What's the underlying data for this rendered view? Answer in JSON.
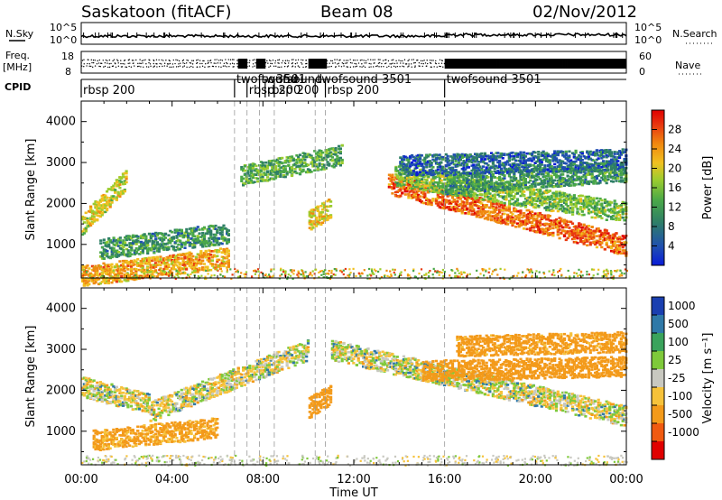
{
  "header": {
    "station": "Saskatoon (fitACF)",
    "beam": "Beam 08",
    "date": "02/Nov/2012"
  },
  "summary_panels": {
    "nsky_label": "N.Sky",
    "nsearch_label": "N.Search",
    "noise_ticks": [
      "10^5",
      "10^0"
    ],
    "freq_label_1": "Freq.",
    "freq_label_2": "[MHz]",
    "freq_ticks": [
      "18",
      "8"
    ],
    "nave_label": "Nave",
    "nave_ticks": [
      "60",
      "0"
    ],
    "cpid_label": "CPID",
    "cpid_segments": [
      {
        "name": "rbsp 200",
        "start_hr": 0.0
      },
      {
        "name": "twofsound",
        "start_hr": 6.75
      },
      {
        "name": "rbsp 200",
        "start_hr": 7.3
      },
      {
        "name": "twofsound",
        "start_hr": 7.85
      },
      {
        "name": "rbsp 200",
        "start_hr": 8.1
      },
      {
        "name": "3501",
        "start_hr": 8.5
      },
      {
        "name": "twofsound 3501",
        "start_hr": 10.3
      },
      {
        "name": "rbsp 200",
        "start_hr": 10.75
      },
      {
        "name": "twofsound 3501",
        "start_hr": 16.0
      }
    ]
  },
  "x_axis": {
    "label": "Time UT",
    "ticks": [
      "00:00",
      "04:00",
      "08:00",
      "12:00",
      "16:00",
      "20:00",
      "00:00"
    ]
  },
  "y_axis": {
    "label": "Slant Range [km]",
    "ticks": [
      "1000",
      "2000",
      "3000",
      "4000"
    ]
  },
  "power_colorbar": {
    "label": "Power [dB]",
    "ticks": [
      "4",
      "8",
      "12",
      "16",
      "20",
      "24",
      "28"
    ],
    "colors": [
      "#0a1bd8",
      "#1f4fb0",
      "#2f7f66",
      "#4aa848",
      "#9bcc2f",
      "#f0c020",
      "#f08a10",
      "#e83a10",
      "#e00000"
    ]
  },
  "velocity_colorbar": {
    "label": "Velocity [m s⁻¹]",
    "ticks": [
      "1000",
      "500",
      "100",
      "25",
      "-25",
      "-100",
      "-500",
      "-1000"
    ],
    "colors": [
      "#1a3fb0",
      "#2f79a8",
      "#3aa35c",
      "#7ec93a",
      "#c8c8c0",
      "#f6c23a",
      "#f39a1a",
      "#f05a10",
      "#e00000"
    ]
  },
  "chart_data": {
    "type": "heatmap",
    "x_range_hours": [
      0,
      24
    ],
    "y_range_km": [
      180,
      4500
    ],
    "vertical_dashed_lines_hr": [
      6.75,
      7.3,
      7.85,
      8.5,
      10.3,
      10.75,
      16.0
    ],
    "power_features": [
      {
        "t_start": 0.0,
        "t_end": 2.0,
        "r_start": 1500,
        "r_end": 2600,
        "level": 18
      },
      {
        "t_start": 0.0,
        "t_end": 6.5,
        "r_start": 250,
        "r_end": 700,
        "level": 22
      },
      {
        "t_start": 0.8,
        "t_end": 6.5,
        "r_start": 900,
        "r_end": 1300,
        "level": 10
      },
      {
        "t_start": 7.0,
        "t_end": 11.5,
        "r_start": 2700,
        "r_end": 3200,
        "level": 12
      },
      {
        "t_start": 10.0,
        "t_end": 11.0,
        "r_start": 1600,
        "r_end": 1900,
        "level": 20
      },
      {
        "t_start": 13.5,
        "t_end": 24.0,
        "r_start": 2500,
        "r_end": 1000,
        "level": 26
      },
      {
        "t_start": 13.8,
        "t_end": 24.0,
        "r_start": 2700,
        "r_end": 1800,
        "level": 14
      },
      {
        "t_start": 16.0,
        "t_end": 24.0,
        "r_start": 2500,
        "r_end": 2800,
        "level": 10
      },
      {
        "t_start": 14.0,
        "t_end": 24.0,
        "r_start": 2950,
        "r_end": 3100,
        "level": 6
      }
    ],
    "velocity_features": [
      {
        "t_start": 0.0,
        "t_end": 3.0,
        "r_start": 2100,
        "r_end": 1700,
        "v": 0
      },
      {
        "t_start": 3.0,
        "t_end": 10.0,
        "r_start": 1500,
        "r_end": 3000,
        "v": 0
      },
      {
        "t_start": 11.0,
        "t_end": 24.0,
        "r_start": 3000,
        "r_end": 1400,
        "v": 0
      },
      {
        "t_start": 10.0,
        "t_end": 11.0,
        "r_start": 1600,
        "r_end": 1900,
        "v": -300
      },
      {
        "t_start": 15.0,
        "t_end": 24.0,
        "r_start": 2500,
        "r_end": 2600,
        "v": -300
      },
      {
        "t_start": 16.5,
        "t_end": 24.0,
        "r_start": 3100,
        "r_end": 3200,
        "v": -200
      },
      {
        "t_start": 0.5,
        "t_end": 6.0,
        "r_start": 800,
        "r_end": 1100,
        "v": -150
      }
    ]
  }
}
